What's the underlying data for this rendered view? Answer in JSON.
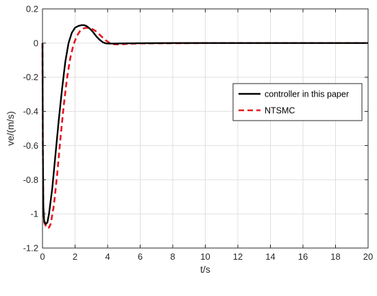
{
  "chart_data": {
    "type": "line",
    "xlabel": "t/s",
    "ylabel": "ve/(m/s)",
    "xlim": [
      0,
      20
    ],
    "ylim": [
      -1.2,
      0.2
    ],
    "xticks": [
      0,
      2,
      4,
      6,
      8,
      10,
      12,
      14,
      16,
      18,
      20
    ],
    "yticks": [
      -1.2,
      -1,
      -0.8,
      -0.6,
      -0.4,
      -0.2,
      0,
      0.2
    ],
    "xtick_labels": [
      "0",
      "2",
      "4",
      "6",
      "8",
      "10",
      "12",
      "14",
      "16",
      "18",
      "20"
    ],
    "ytick_labels": [
      "-1.2",
      "-1",
      "-0.8",
      "-0.6",
      "-0.4",
      "-0.2",
      "0",
      "0.2"
    ],
    "grid": true,
    "legend_position": "right",
    "series": [
      {
        "name": "controller in this paper",
        "color": "#000000",
        "dash": "solid",
        "x": [
          0,
          0.02,
          0.05,
          0.1,
          0.2,
          0.3,
          0.4,
          0.6,
          0.8,
          1.0,
          1.2,
          1.4,
          1.6,
          1.8,
          2.0,
          2.2,
          2.4,
          2.55,
          2.7,
          2.9,
          3.1,
          3.3,
          3.5,
          3.7,
          3.9,
          4.1,
          4.5,
          5.0,
          6,
          8,
          10,
          12,
          14,
          16,
          18,
          20
        ],
        "y": [
          0,
          -0.6,
          -0.95,
          -1.04,
          -1.06,
          -1.05,
          -1.0,
          -0.85,
          -0.65,
          -0.45,
          -0.27,
          -0.11,
          0.0,
          0.06,
          0.09,
          0.1,
          0.105,
          0.105,
          0.1,
          0.085,
          0.065,
          0.04,
          0.02,
          0.005,
          -0.002,
          -0.003,
          -0.003,
          -0.002,
          -0.001,
          0,
          0,
          0,
          0,
          0,
          0,
          0
        ]
      },
      {
        "name": "NTSMC",
        "color": "#e8141c",
        "dash": "dashed",
        "x": [
          0,
          0.02,
          0.05,
          0.1,
          0.2,
          0.3,
          0.4,
          0.5,
          0.7,
          0.9,
          1.1,
          1.3,
          1.5,
          1.7,
          1.9,
          2.1,
          2.3,
          2.5,
          2.7,
          2.9,
          3.1,
          3.3,
          3.5,
          3.7,
          3.9,
          4.1,
          4.3,
          4.6,
          5.0,
          5.5,
          6,
          8,
          10,
          12,
          14,
          16,
          18,
          20
        ],
        "y": [
          0,
          -0.6,
          -0.98,
          -1.05,
          -1.07,
          -1.085,
          -1.08,
          -1.06,
          -0.95,
          -0.77,
          -0.56,
          -0.37,
          -0.21,
          -0.09,
          -0.01,
          0.04,
          0.07,
          0.085,
          0.09,
          0.088,
          0.08,
          0.068,
          0.05,
          0.032,
          0.015,
          0.002,
          -0.006,
          -0.008,
          -0.006,
          -0.004,
          -0.002,
          -0.001,
          0,
          0,
          0,
          0,
          0,
          0
        ]
      }
    ]
  }
}
